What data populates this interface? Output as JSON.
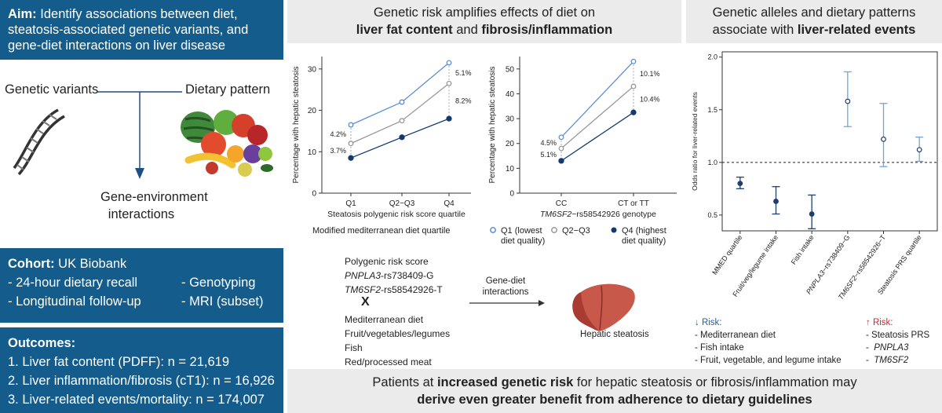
{
  "aim": {
    "head": "Aim:",
    "text_1": " Identify associations between diet,",
    "text_2": "steatosis-associated genetic variants, and",
    "text_3": "gene-diet interactions on liver disease"
  },
  "framework": {
    "genetic_variants": "Genetic variants",
    "dietary_pattern": "Dietary pattern",
    "gene_env_1": "Gene-environment",
    "gene_env_2": "interactions"
  },
  "cohort": {
    "head": "Cohort:",
    "name": " UK Biobank",
    "items": [
      "- 24-hour dietary recall",
      "- Genotyping",
      "- Longitudinal follow-up",
      "- MRI (subset)"
    ]
  },
  "outcomes": {
    "head": "Outcomes:",
    "items": [
      "1. Liver fat content (PDFF): n = 21,619",
      "2. Liver inflammation/fibrosis (cT1): n = 16,926",
      "3. Liver-related events/mortality: n = 174,007"
    ]
  },
  "middle": {
    "title_1": "Genetic risk amplifies effects of diet on",
    "title_bold_1": "liver fat content",
    "title_and": " and ",
    "title_bold_2": "fibrosis/inflammation",
    "legend_title": "Modified mediterranean diet quartile",
    "legend": [
      {
        "name": "Q1 (lowest diet quality)",
        "line1": "Q1 (lowest",
        "line2": "diet quality)",
        "color": "#5b8fd6"
      },
      {
        "name": "Q2−Q3",
        "line1": "Q2−Q3",
        "color": "#999999"
      },
      {
        "name": "Q4 (highest diet quality)",
        "line1": "Q4 (highest",
        "line2": "diet quality)",
        "color": "#123a6e"
      }
    ],
    "interaction": {
      "prs": "Polygenic risk score",
      "pnpla3_gene": "PNPLA3",
      "pnpla3_rs": "-rs738409-G",
      "tm6sf2_gene": "TM6SF2",
      "tm6sf2_rs": "-rs58542926-T",
      "x": "X",
      "diets": [
        "Mediterranean diet",
        "Fruit/vegetables/legumes",
        "Fish",
        "Red/processed meat"
      ],
      "arrow_1": "Gene-diet",
      "arrow_2": "interactions",
      "outcome": "Hepatic steatosis"
    }
  },
  "right": {
    "title_1": "Genetic alleles and dietary patterns",
    "title_2": "associate with ",
    "title_bold": "liver-related events",
    "down_risk": {
      "head": "↓ Risk:",
      "items": [
        "-  Mediterranean diet",
        "-  Fish intake",
        "-  Fruit, vegetable, and legume intake"
      ]
    },
    "up_risk": {
      "head": "↑ Risk:",
      "items": [
        "-  Steatosis PRS",
        "PNPLA3",
        "TM6SF2"
      ]
    }
  },
  "bottom": {
    "line1_a": "Patients at ",
    "line1_bold": "increased genetic risk",
    "line1_b": " for hepatic steatosis or fibrosis/inflammation may",
    "line2_bold": "derive even greater benefit from adherence to dietary guidelines"
  },
  "colors": {
    "box_blue": "#135c8c",
    "q1": "#5b8fd6",
    "q23": "#999999",
    "q4": "#123a6e",
    "or_dark": "#1f3f6e",
    "or_light": "#6fa6d8",
    "down_risk": "#1f5fa8",
    "up_risk": "#d8262c"
  },
  "chart_data": [
    {
      "type": "line",
      "xlabel": "Steatosis polygenic risk score quartile",
      "ylabel": "Percentage with hepatic steatosis",
      "categories": [
        "Q1",
        "Q2−Q3",
        "Q4"
      ],
      "ylim": [
        0,
        33
      ],
      "yticks": [
        0,
        10,
        20,
        30
      ],
      "series": [
        {
          "name": "Q1 (lowest diet quality)",
          "values": [
            16.5,
            22,
            31.5
          ]
        },
        {
          "name": "Q2−Q3",
          "values": [
            12,
            17.5,
            26.5
          ]
        },
        {
          "name": "Q4 (highest diet quality)",
          "values": [
            8.5,
            13.5,
            18
          ]
        }
      ],
      "annotations": {
        "left_upper": "4.2%",
        "left_lower": "3.7%",
        "right_upper": "5.1%",
        "right_lower": "8.2%"
      }
    },
    {
      "type": "line",
      "xlabel_gene": "TM6SF2",
      "xlabel_rest": "−rs58542926 genotype",
      "ylabel": "Percentage with hepatic steatosis",
      "categories": [
        "CC",
        "CT or TT"
      ],
      "ylim": [
        0,
        55
      ],
      "yticks": [
        0,
        10,
        20,
        30,
        40,
        50
      ],
      "series": [
        {
          "name": "Q1 (lowest diet quality)",
          "values": [
            22.5,
            53
          ]
        },
        {
          "name": "Q2−Q3",
          "values": [
            18,
            43
          ]
        },
        {
          "name": "Q4 (highest diet quality)",
          "values": [
            13,
            32.5
          ]
        }
      ],
      "annotations": {
        "left_upper": "4.5%",
        "left_lower": "5.1%",
        "right_upper": "10.1%",
        "right_lower": "10.4%"
      }
    },
    {
      "type": "scatter",
      "ylabel": "Odds ratio for liver-related events",
      "ylim": [
        0.35,
        2.05
      ],
      "yticks": [
        0.5,
        1.0,
        1.5,
        2.0
      ],
      "ytick_labels": [
        "0.5",
        "1.0",
        "1.5",
        "2.0"
      ],
      "reference_line": 1.0,
      "categories": [
        "MMED quartile",
        "Fruit/veg/legume intake",
        "Fish intake",
        "PNPLA3−rs738409−G",
        "TM6SF2−rs58542926−T",
        "Steatosis PRS quartile"
      ],
      "points": [
        {
          "or": 0.8,
          "lo": 0.75,
          "hi": 0.86,
          "group": "dark"
        },
        {
          "or": 0.63,
          "lo": 0.51,
          "hi": 0.77,
          "group": "dark"
        },
        {
          "or": 0.51,
          "lo": 0.37,
          "hi": 0.69,
          "group": "dark"
        },
        {
          "or": 1.58,
          "lo": 1.34,
          "hi": 1.86,
          "group": "light"
        },
        {
          "or": 1.22,
          "lo": 0.96,
          "hi": 1.56,
          "group": "light"
        },
        {
          "or": 1.12,
          "lo": 1.01,
          "hi": 1.24,
          "group": "light"
        }
      ]
    }
  ]
}
